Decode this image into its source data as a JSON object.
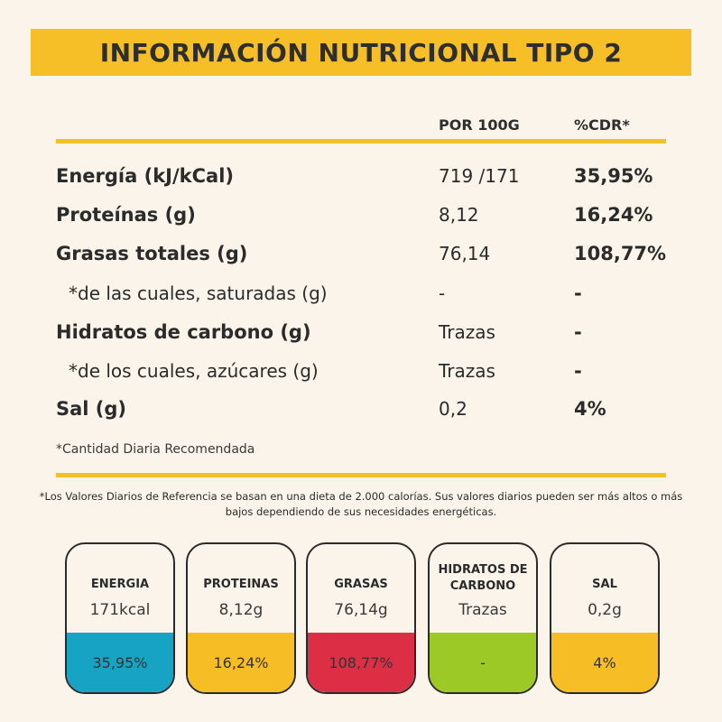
{
  "title": "INFORMACIÓN NUTRICIONAL TIPO 2",
  "columns": {
    "per100": "POR 100G",
    "cdr": "%CDR*"
  },
  "rows": [
    {
      "label": "Energía (kJ/kCal)",
      "value": "719 /171",
      "cdr": "35,95%"
    },
    {
      "label": "Proteínas (g)",
      "value": "8,12",
      "cdr": "16,24%"
    },
    {
      "label": "Grasas totales (g)",
      "value": "76,14",
      "cdr": "108,77%"
    },
    {
      "label": "*de las cuales, saturadas (g)",
      "value": "-",
      "cdr": "-"
    },
    {
      "label": "Hidratos de carbono (g)",
      "value": "Trazas",
      "cdr": "-"
    },
    {
      "label": "*de los cuales, azúcares (g)",
      "value": "Trazas",
      "cdr": "-"
    },
    {
      "label": "Sal (g)",
      "value": "0,2",
      "cdr": "4%"
    }
  ],
  "footnote_cdr": "*Cantidad Diaria Recomendada",
  "footnote_vdr": "*Los Valores Diarios de Referencia se basan en una dieta de 2.000 calorías.  Sus valores diarios pueden ser más altos o más bajos dependiendo de sus necesidades energéticas.",
  "cards": [
    {
      "name": "ENERGIA",
      "amount": "171kcal",
      "percent": "35,95%",
      "color": "#16a3c4"
    },
    {
      "name": "PROTEINAS",
      "amount": "8,12g",
      "percent": "16,24%",
      "color": "#f7bd24"
    },
    {
      "name": "GRASAS",
      "amount": "76,14g",
      "percent": "108,77%",
      "color": "#dc2e45"
    },
    {
      "name": "HIDRATOS DE CARBONO",
      "amount": "Trazas",
      "percent": "-",
      "color": "#9cc926"
    },
    {
      "name": "SAL",
      "amount": "0,2g",
      "percent": "4%",
      "color": "#f7bd24"
    }
  ]
}
